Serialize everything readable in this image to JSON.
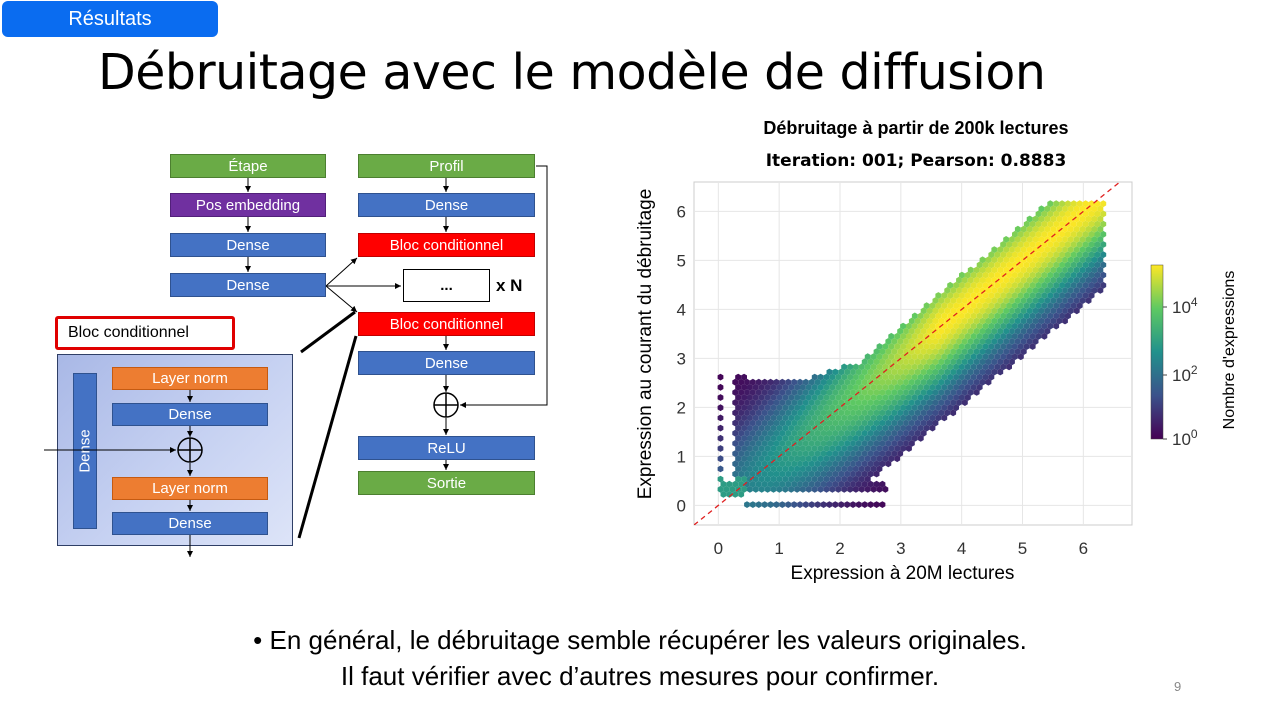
{
  "section_tag": "Résultats",
  "title": "Débruitage avec le modèle de diffusion",
  "diagram": {
    "left_column": [
      "Étape",
      "Pos embedding",
      "Dense",
      "Dense"
    ],
    "right_column": [
      "Profil",
      "Dense",
      "Bloc conditionnel",
      "...",
      "Bloc conditionnel",
      "Dense",
      "ReLU",
      "Sortie"
    ],
    "repeat_label": "x N",
    "block_title": "Bloc conditionnel",
    "block_inner": [
      "Layer norm",
      "Dense",
      "Layer norm",
      "Dense"
    ],
    "block_side": "Dense",
    "colors": {
      "green": "#6aab46",
      "purple": "#7030a0",
      "blue": "#4472c4",
      "red": "#ff0000",
      "orange": "#ed7d31"
    }
  },
  "chart_data": {
    "type": "scatter",
    "subtype": "hexbin density",
    "title": "Débruitage à partir de 200k lectures",
    "subtitle": "Iteration: 001; Pearson: 0.8883",
    "xlabel": "Expression à 20M lectures",
    "ylabel": "Expression au courant du débruitage",
    "xlim": [
      -0.4,
      6.8
    ],
    "ylim": [
      -0.4,
      6.6
    ],
    "x_ticks": [
      0,
      1,
      2,
      3,
      4,
      5,
      6
    ],
    "y_ticks": [
      0,
      1,
      2,
      3,
      4,
      5,
      6
    ],
    "x_tick_labels": [
      "0",
      "1",
      "2",
      "3",
      "4",
      "5",
      "6"
    ],
    "y_tick_labels": [
      "0",
      "1",
      "2",
      "3",
      "4",
      "5",
      "6"
    ],
    "grid": true,
    "reference_line": "y = x (red dashed)",
    "colorbar": {
      "label": "Nombre d'expressions",
      "scale": "log",
      "ticks": [
        "10^0",
        "10^2",
        "10^4"
      ],
      "colormap": "viridis"
    }
  },
  "bullet": {
    "line1": "En général, le débruitage semble récupérer les valeurs originales.",
    "line2": "Il faut vérifier avec d’autres mesures pour confirmer."
  },
  "page_number": "9"
}
